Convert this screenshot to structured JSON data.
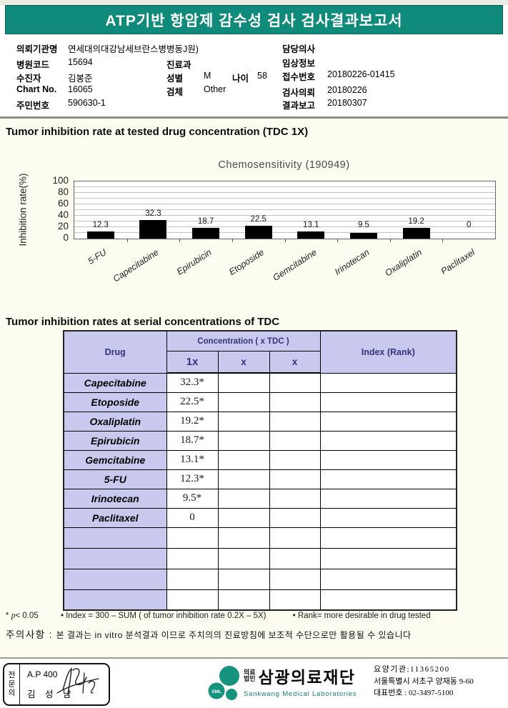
{
  "banner": {
    "title": "ATP기반 항암제 감수성 검사 검사결과보고서"
  },
  "colors": {
    "banner_teal": "#0F8A7B",
    "table_header_bg": "#C9C9F0",
    "logo_teal": "#16937E",
    "bar_color": "#000000"
  },
  "patient_info": {
    "left": [
      {
        "label": "의뢰기관명",
        "value": "연세대의대강남세브란스병병동J원)"
      },
      {
        "label": "병원코드",
        "value": "15694"
      },
      {
        "label": "수진자",
        "value": "김봉준"
      },
      {
        "label": "Chart No.",
        "value": "16065"
      },
      {
        "label": "주민번호",
        "value": "590630-1"
      }
    ],
    "mid": {
      "dept_label": "진료과",
      "dept_value": "",
      "sex_label": "성별",
      "sex_value": "M",
      "age_label": "나이",
      "age_value": "58",
      "specimen_label": "검체",
      "specimen_value": "Other"
    },
    "right": [
      {
        "label": "담당의사",
        "value": ""
      },
      {
        "label": "임상정보",
        "value": ""
      },
      {
        "label": "접수번호",
        "value": "20180226-01415"
      },
      {
        "label": "검사의뢰",
        "value": "20180226"
      },
      {
        "label": "결과보고",
        "value": "20180307"
      }
    ]
  },
  "section1": {
    "heading": "Tumor inhibition rate at tested drug concentration (TDC 1X)"
  },
  "chart_data": {
    "type": "bar",
    "title": "Chemosensitivity (190949)",
    "categories": [
      "5-FU",
      "Capecitabine",
      "Epirubicin",
      "Etoposide",
      "Gemcitabine",
      "Irinotecan",
      "Oxaliplatin",
      "Paclitaxel"
    ],
    "values": [
      12.3,
      32.3,
      18.7,
      22.5,
      13.1,
      9.5,
      19.2,
      0
    ],
    "xlabel": "",
    "ylabel": "Inhibition rate(%)",
    "ylim": [
      0,
      100
    ],
    "ytick_step": 20,
    "grid_step": 10,
    "grid": "horizontal",
    "legend": "none",
    "bar_color": "#000000"
  },
  "section2": {
    "heading": "Tumor inhibition rates at serial concentrations of TDC"
  },
  "table": {
    "col_drug": "Drug",
    "col_concentration": "Concentration ( x TDC )",
    "col_index": "Index (Rank)",
    "subcols": [
      "1x",
      "x",
      "x"
    ],
    "rows": [
      {
        "drug": "Capecitabine",
        "c1": "32.3*",
        "c2": "",
        "c3": "",
        "index": ""
      },
      {
        "drug": "Etoposide",
        "c1": "22.5*",
        "c2": "",
        "c3": "",
        "index": ""
      },
      {
        "drug": "Oxaliplatin",
        "c1": "19.2*",
        "c2": "",
        "c3": "",
        "index": ""
      },
      {
        "drug": "Epirubicin",
        "c1": "18.7*",
        "c2": "",
        "c3": "",
        "index": ""
      },
      {
        "drug": "Gemcitabine",
        "c1": "13.1*",
        "c2": "",
        "c3": "",
        "index": ""
      },
      {
        "drug": "5-FU",
        "c1": "12.3*",
        "c2": "",
        "c3": "",
        "index": ""
      },
      {
        "drug": "Irinotecan",
        "c1": "9.5*",
        "c2": "",
        "c3": "",
        "index": ""
      },
      {
        "drug": "Paclitaxel",
        "c1": "0",
        "c2": "",
        "c3": "",
        "index": ""
      }
    ],
    "empty_rows": 4
  },
  "footnotes": {
    "star": "*",
    "p": "p",
    "p_rest": "< 0.05",
    "index_note": "• Index = 300 – SUM ( of tumor inhibition rate 0.2X  –  5X)",
    "rank_note": "• Rank= more desirable in drug tested"
  },
  "caution": {
    "label": "주의사항 :",
    "text": "본 결과는 in vitro 분석결과 이므로 주치의의 진료방침에 보조적 수단으로만 활용될 수 있습니다"
  },
  "footer": {
    "stamp": {
      "side_label": "전문의",
      "line1": "A.P 400",
      "line2": "김 성 남"
    },
    "logo": {
      "sml": "SML",
      "org_small_l1": "의료",
      "org_small_l2": "법인",
      "name": "삼광의료재단",
      "name_en": "Sankwang Medical Laboratories"
    },
    "contact": {
      "l1": "요양기관:11365200",
      "l2": "서울특별시 서초구 양재동 9-60",
      "l3": "대표번호 : 02-3497-5100"
    }
  }
}
